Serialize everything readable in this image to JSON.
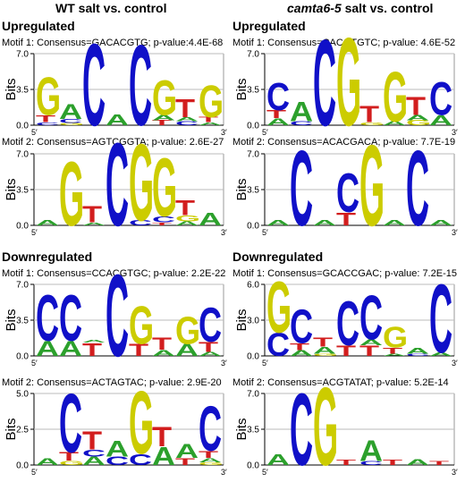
{
  "headers": {
    "left": "WT salt vs. control",
    "right_prefix": "camta6-5",
    "right_suffix": " salt vs. control"
  },
  "sections": {
    "up": "Upregulated",
    "down": "Downregulated"
  },
  "axis": {
    "ylabel": "Bits",
    "x_start": "5′",
    "x_end": "3′"
  },
  "colors": {
    "A": "#2ca02c",
    "C": "#1010c8",
    "G": "#cccc00",
    "T": "#d21e1e"
  },
  "panels": [
    {
      "id": "wt-up-1",
      "label": "Motif 1: Consensus=GACACGTG; p-value:4.4E-68",
      "ymax": 7.0,
      "ticks": [
        "0.0",
        "3.5",
        "7.0"
      ],
      "tickvals": [
        0,
        3.5,
        7.0
      ],
      "positions": [
        [
          [
            "C",
            0.3
          ],
          [
            "T",
            0.7
          ],
          [
            "G",
            3.8
          ]
        ],
        [
          [
            "G",
            0.2
          ],
          [
            "C",
            0.4
          ],
          [
            "A",
            1.5
          ]
        ],
        [
          [
            "C",
            8.2
          ]
        ],
        [
          [
            "A",
            1.1
          ]
        ],
        [
          [
            "C",
            8.0
          ]
        ],
        [
          [
            "T",
            0.5
          ],
          [
            "A",
            0.5
          ],
          [
            "G",
            3.5
          ]
        ],
        [
          [
            "C",
            0.4
          ],
          [
            "A",
            0.4
          ],
          [
            "T",
            1.8
          ]
        ],
        [
          [
            "A",
            0.3
          ],
          [
            "T",
            0.5
          ],
          [
            "G",
            3.2
          ]
        ]
      ]
    },
    {
      "id": "wt-up-2",
      "label": "Motif 2: Consensus=AGTCGGTA; p-value: 2.6E-27",
      "ymax": 7.0,
      "ticks": [
        "0.0",
        "3.5",
        "7.0"
      ],
      "tickvals": [
        0,
        3.5,
        7.0
      ],
      "positions": [
        [
          [
            "A",
            0.5
          ]
        ],
        [
          [
            "G",
            6.4
          ]
        ],
        [
          [
            "A",
            0.3
          ],
          [
            "T",
            1.6
          ]
        ],
        [
          [
            "C",
            8.3
          ]
        ],
        [
          [
            "C",
            0.5
          ],
          [
            "G",
            7.7
          ]
        ],
        [
          [
            "T",
            0.3
          ],
          [
            "C",
            0.6
          ],
          [
            "G",
            5.8
          ]
        ],
        [
          [
            "A",
            0.4
          ],
          [
            "G",
            0.6
          ],
          [
            "T",
            1.5
          ]
        ],
        [
          [
            "A",
            1.3
          ]
        ]
      ]
    },
    {
      "id": "camta-up-1",
      "label": "Motif 1: Consensus=CACGTGTC; p-value: 4.6E-52",
      "ymax": 7.0,
      "ticks": [
        "0.0",
        "3.5",
        "7.0"
      ],
      "tickvals": [
        0,
        3.5,
        7.0
      ],
      "positions": [
        [
          [
            "A",
            0.7
          ],
          [
            "T",
            0.8
          ],
          [
            "C",
            2.7
          ]
        ],
        [
          [
            "C",
            0.4
          ],
          [
            "A",
            2.0
          ]
        ],
        [
          [
            "C",
            8.6
          ]
        ],
        [
          [
            "G",
            8.8
          ]
        ],
        [
          [
            "G",
            0.3
          ],
          [
            "T",
            1.6
          ]
        ],
        [
          [
            "A",
            0.4
          ],
          [
            "G",
            5.0
          ]
        ],
        [
          [
            "G",
            0.5
          ],
          [
            "A",
            0.5
          ],
          [
            "T",
            1.8
          ]
        ],
        [
          [
            "A",
            1.0
          ],
          [
            "C",
            3.3
          ]
        ]
      ]
    },
    {
      "id": "camta-up-2",
      "label": "Motif 2: Consensus=ACACGACA; p-value: 7.7E-19",
      "ymax": 7.0,
      "ticks": [
        "0.0",
        "3.5",
        "7.0"
      ],
      "tickvals": [
        0,
        3.5,
        7.0
      ],
      "positions": [
        [
          [
            "A",
            0.5
          ]
        ],
        [
          [
            "C",
            7.5
          ]
        ],
        [
          [
            "A",
            0.5
          ]
        ],
        [
          [
            "T",
            1.3
          ],
          [
            "C",
            3.9
          ]
        ],
        [
          [
            "G",
            8.1
          ]
        ],
        [
          [
            "A",
            0.5
          ]
        ],
        [
          [
            "C",
            7.5
          ]
        ],
        [
          [
            "A",
            0.5
          ]
        ]
      ]
    },
    {
      "id": "wt-down-1",
      "label": "Motif 1: Consensus=CCACGTGC; p-value: 2.2E-22",
      "ymax": 7.0,
      "ticks": [
        "0.0",
        "3.5",
        "7.0"
      ],
      "tickvals": [
        0,
        3.5,
        7.0
      ],
      "positions": [
        [
          [
            "A",
            1.5
          ],
          [
            "C",
            4.6
          ]
        ],
        [
          [
            "A",
            1.5
          ],
          [
            "C",
            4.6
          ]
        ],
        [
          [
            "T",
            1.3
          ],
          [
            "A",
            0.3
          ]
        ],
        [
          [
            "C",
            8.2
          ]
        ],
        [
          [
            "T",
            1.2
          ],
          [
            "G",
            3.8
          ]
        ],
        [
          [
            "A",
            0.6
          ],
          [
            "T",
            1.2
          ]
        ],
        [
          [
            "A",
            1.2
          ],
          [
            "G",
            2.7
          ]
        ],
        [
          [
            "A",
            0.4
          ],
          [
            "T",
            1.0
          ],
          [
            "C",
            3.4
          ]
        ]
      ]
    },
    {
      "id": "wt-down-2",
      "label": "Motif 2: Consensus=ACTAGTAC; p-value: 2.9E-20",
      "ymax": 5.0,
      "ticks": [
        "0.0",
        "2.5",
        "5.0"
      ],
      "tickvals": [
        0,
        2.5,
        5.0
      ],
      "positions": [
        [
          [
            "A",
            0.5
          ]
        ],
        [
          [
            "G",
            0.3
          ],
          [
            "T",
            0.6
          ],
          [
            "C",
            4.2
          ]
        ],
        [
          [
            "A",
            0.6
          ],
          [
            "C",
            0.5
          ],
          [
            "T",
            1.3
          ]
        ],
        [
          [
            "C",
            0.6
          ],
          [
            "A",
            1.1
          ]
        ],
        [
          [
            "C",
            0.8
          ],
          [
            "G",
            4.5
          ]
        ],
        [
          [
            "A",
            1.3
          ],
          [
            "T",
            1.4
          ]
        ],
        [
          [
            "T",
            0.5
          ],
          [
            "A",
            1.0
          ]
        ],
        [
          [
            "G",
            0.2
          ],
          [
            "A",
            0.3
          ],
          [
            "T",
            0.5
          ],
          [
            "C",
            3.2
          ]
        ]
      ]
    },
    {
      "id": "camta-down-1",
      "label": "Motif 1: Consensus=GCACCGAC; p-value: 7.2E-15",
      "ymax": 6.0,
      "ticks": [
        "0.0",
        "3.0",
        "6.0"
      ],
      "tickvals": [
        0,
        3.0,
        6.0
      ],
      "positions": [
        [
          [
            "C",
            2.0
          ],
          [
            "G",
            4.4
          ]
        ],
        [
          [
            "A",
            0.5
          ],
          [
            "T",
            0.6
          ],
          [
            "C",
            2.9
          ]
        ],
        [
          [
            "G",
            0.2
          ],
          [
            "A",
            0.6
          ],
          [
            "T",
            0.8
          ]
        ],
        [
          [
            "T",
            0.9
          ],
          [
            "C",
            3.8
          ]
        ],
        [
          [
            "T",
            0.9
          ],
          [
            "A",
            0.5
          ],
          [
            "C",
            3.8
          ]
        ],
        [
          [
            "A",
            0.2
          ],
          [
            "T",
            0.5
          ],
          [
            "G",
            1.8
          ]
        ],
        [
          [
            "C",
            0.2
          ],
          [
            "A",
            0.5
          ]
        ],
        [
          [
            "A",
            0.3
          ],
          [
            "C",
            5.9
          ]
        ]
      ]
    },
    {
      "id": "camta-down-2",
      "label": "Motif 2: Consensus=ACGTATAT; p-value: 5.2E-14",
      "ymax": 7.0,
      "ticks": [
        "0.0",
        "3.5",
        "7.0"
      ],
      "tickvals": [
        0,
        3.5,
        7.0
      ],
      "positions": [
        [
          [
            "A",
            1.1
          ]
        ],
        [
          [
            "C",
            7.2
          ]
        ],
        [
          [
            "G",
            7.8
          ]
        ],
        [
          [
            "T",
            0.5
          ]
        ],
        [
          [
            "C",
            0.4
          ],
          [
            "A",
            2.1
          ]
        ],
        [
          [
            "T",
            0.5
          ]
        ],
        [
          [
            "A",
            0.6
          ]
        ],
        [
          [
            "T",
            0.4
          ]
        ]
      ]
    }
  ]
}
